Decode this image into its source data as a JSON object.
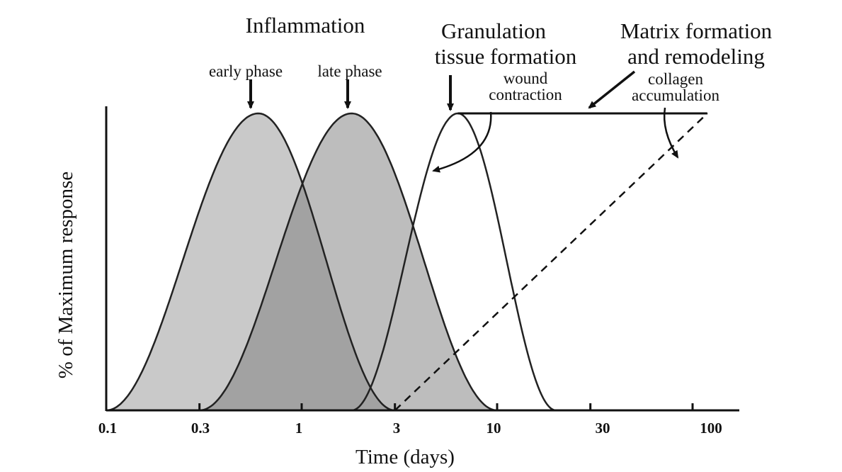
{
  "chart_data": {
    "type": "area",
    "xscale": "log",
    "xlim": [
      0.1,
      130
    ],
    "ylim": [
      0,
      100
    ],
    "xlabel": "Time (days)",
    "ylabel": "% of Maximum response",
    "xticks": [
      0.1,
      0.3,
      1,
      3,
      10,
      30,
      100
    ],
    "xtick_labels": [
      "0.1",
      "0.3",
      "1",
      "3",
      "10",
      "30",
      "100"
    ],
    "colors": {
      "early_fill": "#c9c9c9",
      "late_fill": "#bdbdbd",
      "overlap_fill": "#a2a2a2",
      "line": "#111111"
    },
    "series": [
      {
        "name": "Inflammation early phase",
        "curve": "bell",
        "start": 0.1,
        "peak": 0.6,
        "end": 3,
        "peak_value": 100
      },
      {
        "name": "Inflammation late phase",
        "curve": "bell",
        "start": 0.3,
        "peak": 1.8,
        "end": 10,
        "peak_value": 100
      },
      {
        "name": "Granulation tissue formation",
        "curve": "bell",
        "start": 1.8,
        "peak": 6.3,
        "end": 20,
        "peak_value": 100
      },
      {
        "name": "Matrix formation and remodeling",
        "curve": "plateau",
        "start": 6.3,
        "end": 120,
        "value": 100
      },
      {
        "name": "collagen accumulation",
        "curve": "dashed-line",
        "points": [
          [
            3,
            0
          ],
          [
            120,
            100
          ]
        ]
      }
    ],
    "annotations": {
      "inflammation": "Inflammation",
      "early_phase": "early phase",
      "late_phase": "late phase",
      "granulation_1": "Granulation",
      "granulation_2": "tissue formation",
      "wound_1": "wound",
      "wound_2": "contraction",
      "matrix_1": "Matrix formation",
      "matrix_2": "and remodeling",
      "collagen_1": "collagen",
      "collagen_2": "accumulation"
    }
  }
}
